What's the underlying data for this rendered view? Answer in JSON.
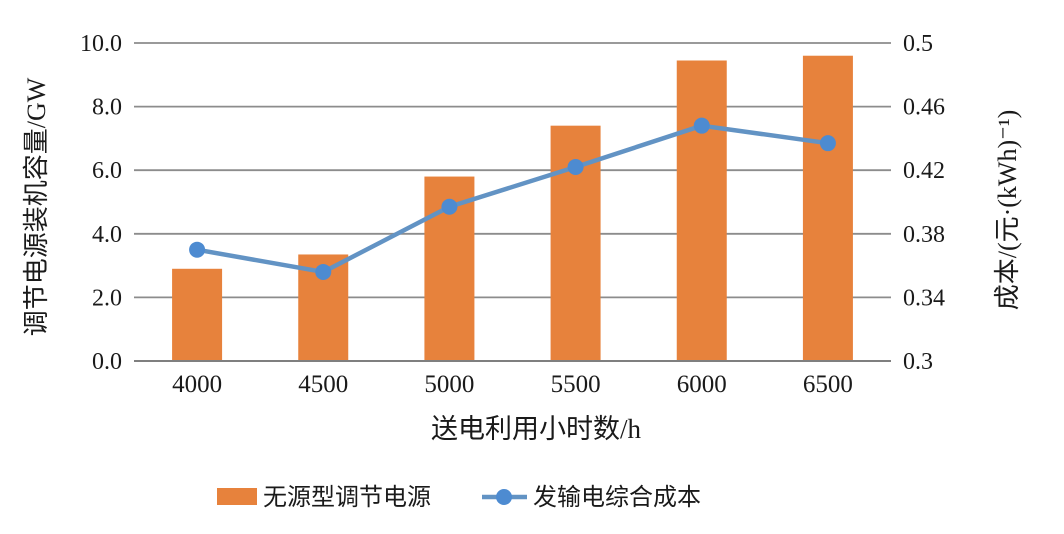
{
  "figure": {
    "background": "#FFFFFF"
  },
  "chart_data": {
    "type": "bar+line",
    "categories": [
      "4000",
      "4500",
      "5000",
      "5500",
      "6000",
      "6500"
    ],
    "series": [
      {
        "name": "无源型调节电源",
        "chart_type": "bar",
        "axis": "left",
        "color": "#E7823C",
        "values": [
          2.9,
          3.35,
          5.8,
          7.4,
          9.45,
          9.6
        ]
      },
      {
        "name": "发输电综合成本",
        "chart_type": "line",
        "axis": "right",
        "color": "#6293C4",
        "marker_color": "#4D8BD1",
        "values": [
          0.37,
          0.356,
          0.397,
          0.422,
          0.448,
          0.437
        ]
      }
    ],
    "x_axis": {
      "title": "送电利用小时数/h",
      "tick_labels": [
        "4000",
        "4500",
        "5000",
        "5500",
        "6000",
        "6500"
      ]
    },
    "left_axis": {
      "title": "调节电源装机容量/GW",
      "min": 0,
      "max": 10,
      "tick_labels": [
        "0.0",
        "2.0",
        "4.0",
        "6.0",
        "8.0",
        "10.0"
      ]
    },
    "right_axis": {
      "title": "成本/(元·(kWh)⁻¹)",
      "min": 0.3,
      "max": 0.5,
      "tick_labels": [
        "0.3",
        "0.34",
        "0.38",
        "0.42",
        "0.46",
        "0.5"
      ]
    },
    "grid": true,
    "legend_position": "bottom",
    "styles": {
      "grid_color": "#8C8C8C",
      "axis_color": "#7F7F7F",
      "text_color": "#1A1A1A"
    }
  }
}
